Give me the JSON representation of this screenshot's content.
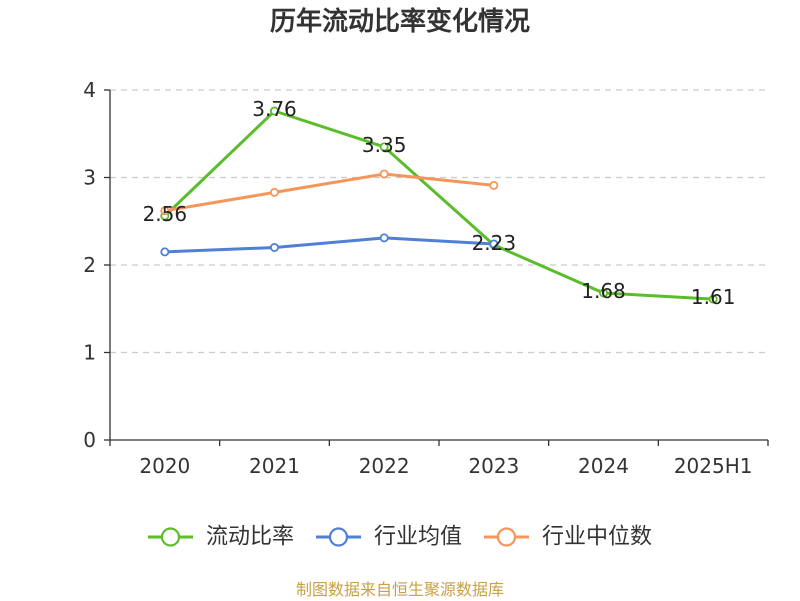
{
  "chart_data": {
    "type": "line",
    "title": "历年流动比率变化情况",
    "categories": [
      "2020",
      "2021",
      "2022",
      "2023",
      "2024",
      "2025H1"
    ],
    "ylim": [
      0,
      4
    ],
    "yticks": [
      0,
      1,
      2,
      3,
      4
    ],
    "grid": true,
    "legend": "bottom",
    "series": [
      {
        "name": "流动比率",
        "color": "#5bbd2b",
        "data_labels": true,
        "values": [
          2.56,
          3.76,
          3.35,
          2.23,
          1.68,
          1.61
        ]
      },
      {
        "name": "行业均值",
        "color": "#4f7fd6",
        "data_labels": false,
        "values": [
          2.15,
          2.2,
          2.31,
          2.24,
          null,
          null
        ]
      },
      {
        "name": "行业中位数",
        "color": "#f5955a",
        "data_labels": false,
        "values": [
          2.62,
          2.83,
          3.04,
          2.91,
          null,
          null
        ]
      }
    ]
  },
  "footer": "制图数据来自恒生聚源数据库"
}
